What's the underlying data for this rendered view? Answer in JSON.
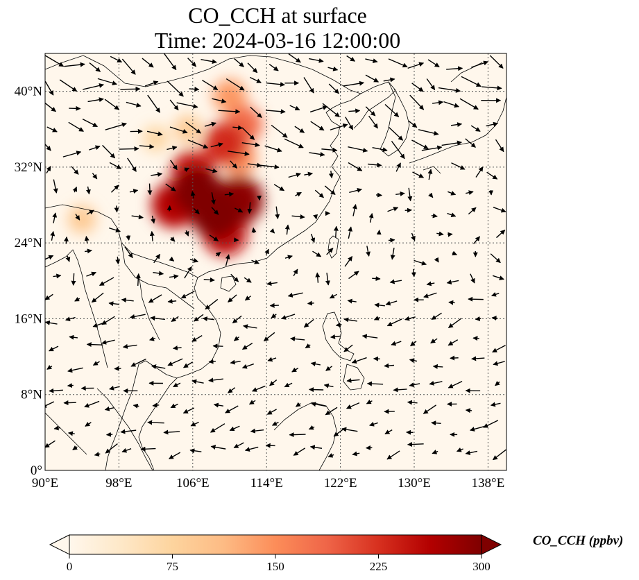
{
  "title": {
    "line1": "CO_CCH at surface",
    "line2": "Time: 2024-03-16 12:00:00"
  },
  "map": {
    "lon_range": [
      90,
      140
    ],
    "lat_range": [
      0,
      44
    ],
    "lon_ticks": [
      {
        "value": 90,
        "label": "90°E"
      },
      {
        "value": 98,
        "label": "98°E"
      },
      {
        "value": 106,
        "label": "106°E"
      },
      {
        "value": 114,
        "label": "114°E"
      },
      {
        "value": 122,
        "label": "122°E"
      },
      {
        "value": 130,
        "label": "130°E"
      },
      {
        "value": 138,
        "label": "138°E"
      }
    ],
    "lat_ticks": [
      {
        "value": 0,
        "label": "0°"
      },
      {
        "value": 8,
        "label": "8°N"
      },
      {
        "value": 16,
        "label": "16°N"
      },
      {
        "value": 24,
        "label": "24°N"
      },
      {
        "value": 32,
        "label": "32°N"
      },
      {
        "value": 40,
        "label": "40°N"
      }
    ],
    "gridlines": true,
    "concentration_hotspots": [
      {
        "lon": 106.5,
        "lat": 29.5,
        "value": 300
      },
      {
        "lon": 108.5,
        "lat": 27.0,
        "value": 300
      },
      {
        "lon": 111.0,
        "lat": 28.5,
        "value": 290
      },
      {
        "lon": 104.0,
        "lat": 28.0,
        "value": 260
      },
      {
        "lon": 109.5,
        "lat": 25.0,
        "value": 250
      },
      {
        "lon": 106.0,
        "lat": 31.5,
        "value": 240
      },
      {
        "lon": 109.5,
        "lat": 34.5,
        "value": 230
      },
      {
        "lon": 111.5,
        "lat": 36.5,
        "value": 180
      },
      {
        "lon": 110.0,
        "lat": 39.5,
        "value": 140
      },
      {
        "lon": 105.5,
        "lat": 36.0,
        "value": 90
      },
      {
        "lon": 111.0,
        "lat": 33.0,
        "value": 150
      },
      {
        "lon": 94.0,
        "lat": 26.5,
        "value": 90
      },
      {
        "lon": 102.0,
        "lat": 35.0,
        "value": 70
      }
    ]
  },
  "colorbar": {
    "label": "CO_CCH (ppbv)",
    "min": 0,
    "max": 300,
    "colormap": "OrRd",
    "extend": "both",
    "colors": [
      "#fff7ec",
      "#fee8c8",
      "#fdd49e",
      "#fdbb84",
      "#fc8d59",
      "#ef6548",
      "#d7301f",
      "#b30000",
      "#7f0000"
    ],
    "ticks": [
      {
        "value": 0,
        "label": "0"
      },
      {
        "value": 75,
        "label": "75"
      },
      {
        "value": 150,
        "label": "150"
      },
      {
        "value": 225,
        "label": "225"
      },
      {
        "value": 300,
        "label": "300"
      }
    ]
  }
}
